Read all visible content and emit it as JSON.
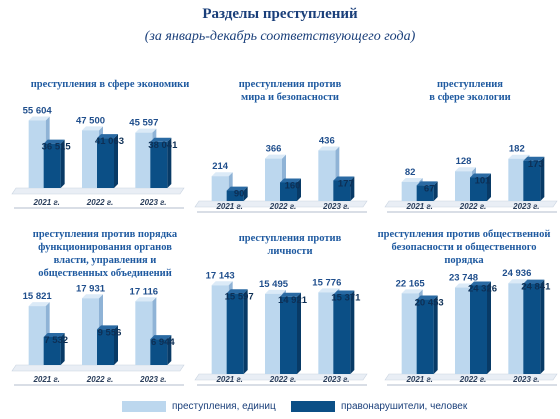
{
  "header": {
    "title": "Разделы преступлений",
    "subtitle": "(за январь-декабрь соответствующего года)"
  },
  "colors": {
    "crimes": "#bcd7ee",
    "crimes_side": "#8fb3d6",
    "offenders": "#0b4f86",
    "offenders_side": "#083a66"
  },
  "legend": {
    "crimes": "преступления, единиц",
    "offenders": "правонарушители, человек"
  },
  "chart_data": [
    {
      "type": "bar",
      "title": "преступления в сфере экономики",
      "categories": [
        "2021 г.",
        "2022 г.",
        "2023 г."
      ],
      "series": [
        {
          "values": [
            55604,
            47500,
            45597
          ],
          "labels": [
            "55 604",
            "47 500",
            "45 597"
          ]
        },
        {
          "values": [
            36515,
            41063,
            38041
          ],
          "labels": [
            "36 515",
            "41 063",
            "38 041"
          ]
        }
      ],
      "ylim": [
        0,
        56000
      ]
    },
    {
      "type": "bar",
      "title": "преступления против\nмира и безопасности",
      "categories": [
        "2021 г.",
        "2022 г.",
        "2023 г."
      ],
      "series": [
        {
          "values": [
            214,
            366,
            436
          ],
          "labels": [
            "214",
            "366",
            "436"
          ]
        },
        {
          "values": [
            90,
            160,
            177
          ],
          "labels": [
            "90",
            "160",
            "177"
          ]
        }
      ],
      "ylim": [
        0,
        440
      ]
    },
    {
      "type": "bar",
      "title": "преступления\nв сфере экологии",
      "categories": [
        "2021 г.",
        "2022 г.",
        "2023 г."
      ],
      "series": [
        {
          "values": [
            82,
            128,
            182
          ],
          "labels": [
            "82",
            "128",
            "182"
          ]
        },
        {
          "values": [
            67,
            101,
            173
          ],
          "labels": [
            "67",
            "101",
            "173"
          ]
        }
      ],
      "ylim": [
        0,
        185
      ]
    },
    {
      "type": "bar",
      "title": "преступления против порядка\nфункционирования органов\nвласти, управления и\nобщественных объединений",
      "categories": [
        "2021 г.",
        "2022 г.",
        "2023 г."
      ],
      "series": [
        {
          "values": [
            15821,
            17931,
            17116
          ],
          "labels": [
            "15 821",
            "17 931",
            "17 116"
          ]
        },
        {
          "values": [
            7532,
            9556,
            6944
          ],
          "labels": [
            "7 532",
            "9 556",
            "6 944"
          ]
        }
      ],
      "ylim": [
        0,
        18000
      ]
    },
    {
      "type": "bar",
      "title": "преступления против\nличности",
      "categories": [
        "2021 г.",
        "2022 г.",
        "2023 г."
      ],
      "series": [
        {
          "values": [
            17143,
            15495,
            15776
          ],
          "labels": [
            "17 143",
            "15 495",
            "15 776"
          ]
        },
        {
          "values": [
            15597,
            14921,
            15371
          ],
          "labels": [
            "15 597",
            "14 921",
            "15 371"
          ]
        }
      ],
      "ylim": [
        0,
        17200
      ]
    },
    {
      "type": "bar",
      "title": "преступления против общественной\nбезопасности и общественного\nпорядка",
      "categories": [
        "2021 г.",
        "2022 г.",
        "2023 г."
      ],
      "series": [
        {
          "values": [
            22165,
            23748,
            24936
          ],
          "labels": [
            "22 165",
            "23 748",
            "24 936"
          ]
        },
        {
          "values": [
            20453,
            24326,
            24841
          ],
          "labels": [
            "20 453",
            "24 326",
            "24 841"
          ]
        }
      ],
      "ylim": [
        0,
        25000
      ]
    }
  ]
}
